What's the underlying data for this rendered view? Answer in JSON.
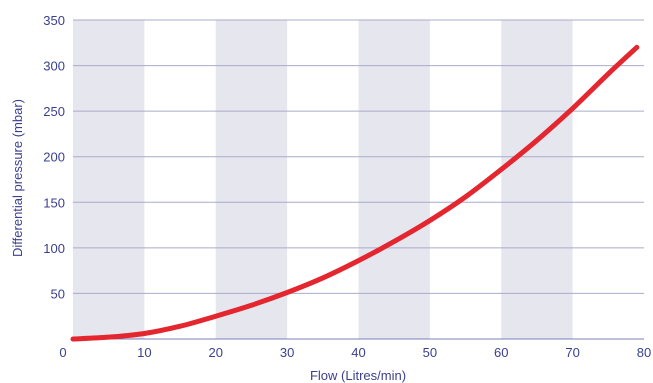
{
  "chart_data": {
    "type": "line",
    "title": "",
    "xlabel": "Flow (Litres/min)",
    "ylabel": "Differential pressure (mbar)",
    "xlim": [
      0,
      80
    ],
    "ylim": [
      0,
      350
    ],
    "x_ticks": [
      0,
      10,
      20,
      30,
      40,
      50,
      60,
      70,
      80
    ],
    "y_ticks": [
      50,
      100,
      150,
      200,
      250,
      300,
      350
    ],
    "grid": "horizontal",
    "shaded_x_bands": [
      [
        0,
        10
      ],
      [
        20,
        30
      ],
      [
        40,
        50
      ],
      [
        60,
        70
      ]
    ],
    "series": [
      {
        "color": "#e4262f",
        "x": [
          0,
          5,
          10,
          15,
          20,
          25,
          30,
          35,
          40,
          45,
          50,
          55,
          60,
          65,
          70,
          75,
          79
        ],
        "y": [
          0,
          2,
          6,
          14,
          25,
          37,
          51,
          67,
          86,
          107,
          130,
          156,
          186,
          218,
          253,
          291,
          320
        ]
      }
    ]
  },
  "colors": {
    "band": "#e6e6ef",
    "grid": "#a9abcb",
    "axis": "#7b7fb8",
    "text": "#3b3f8f",
    "line": "#e4262f"
  }
}
